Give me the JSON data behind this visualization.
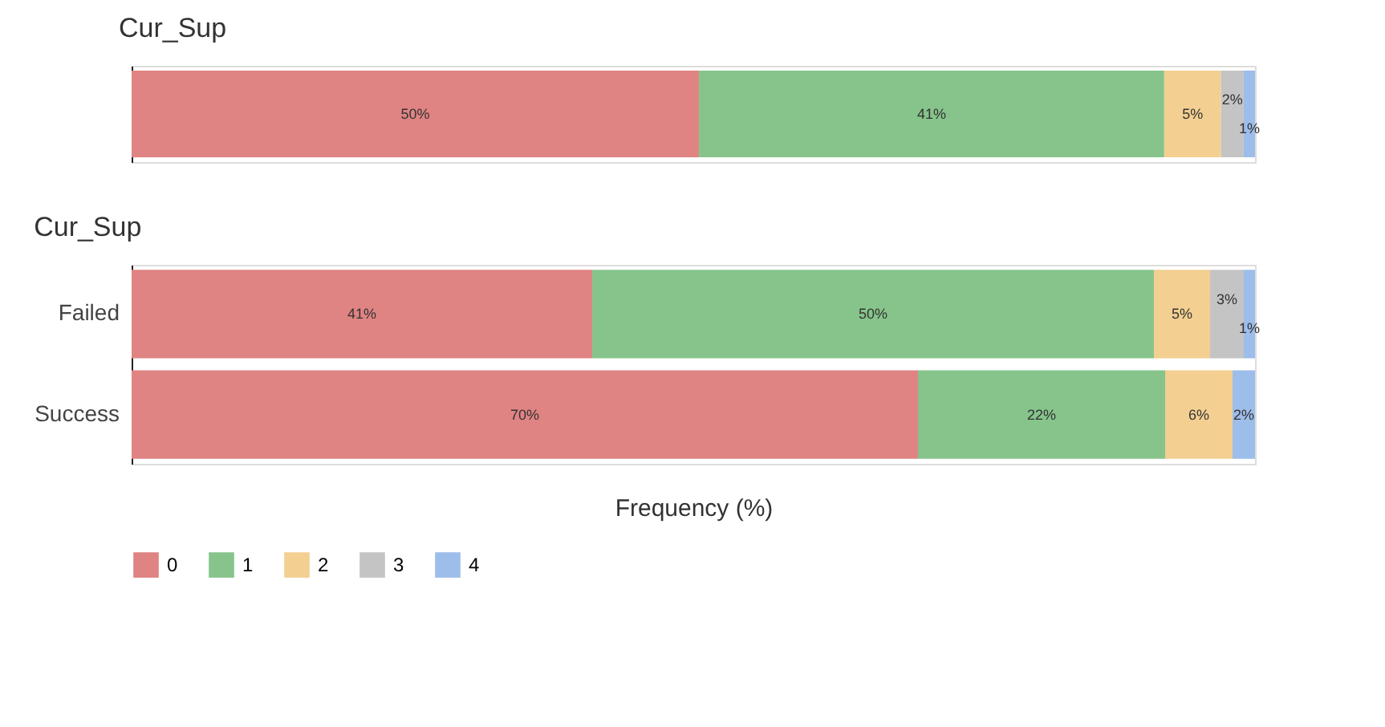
{
  "chart_data": [
    {
      "type": "bar",
      "orientation": "horizontal",
      "stacked": true,
      "title": "Cur_Sup",
      "categories": [
        null
      ],
      "tick_labels": "y",
      "legend": "bottom",
      "series": [
        {
          "name": "0",
          "color": "#e08383",
          "values": [
            50
          ],
          "value_labels": [
            "50%"
          ]
        },
        {
          "name": "1",
          "color": "#86c48b",
          "values": [
            41
          ],
          "value_labels": [
            "41%"
          ]
        },
        {
          "name": "2",
          "color": "#f3cf91",
          "values": [
            5
          ],
          "value_labels": [
            "5%"
          ]
        },
        {
          "name": "3",
          "color": "#c4c4c4",
          "values": [
            2
          ],
          "value_labels": [
            "2%"
          ]
        },
        {
          "name": "4",
          "color": "#9dbdea",
          "values": [
            1
          ],
          "value_labels": [
            "1%"
          ]
        }
      ]
    },
    {
      "type": "bar",
      "orientation": "horizontal",
      "stacked": true,
      "title": "Cur_Sup",
      "xlabel": "Frequency (%)",
      "categories": [
        "Failed",
        "Success"
      ],
      "tick_labels": "y",
      "legend": "bottom",
      "series": [
        {
          "name": "0",
          "color": "#e08383",
          "values": [
            41,
            70
          ],
          "value_labels": [
            "41%",
            "70%"
          ]
        },
        {
          "name": "1",
          "color": "#86c48b",
          "values": [
            50,
            22
          ],
          "value_labels": [
            "50%",
            "22%"
          ]
        },
        {
          "name": "2",
          "color": "#f3cf91",
          "values": [
            5,
            6
          ],
          "value_labels": [
            "5%",
            "6%"
          ]
        },
        {
          "name": "3",
          "color": "#c4c4c4",
          "values": [
            3,
            0
          ],
          "value_labels": [
            "3%",
            null
          ]
        },
        {
          "name": "4",
          "color": "#9dbdea",
          "values": [
            1,
            2
          ],
          "value_labels": [
            "1%",
            "2%"
          ]
        }
      ]
    }
  ]
}
